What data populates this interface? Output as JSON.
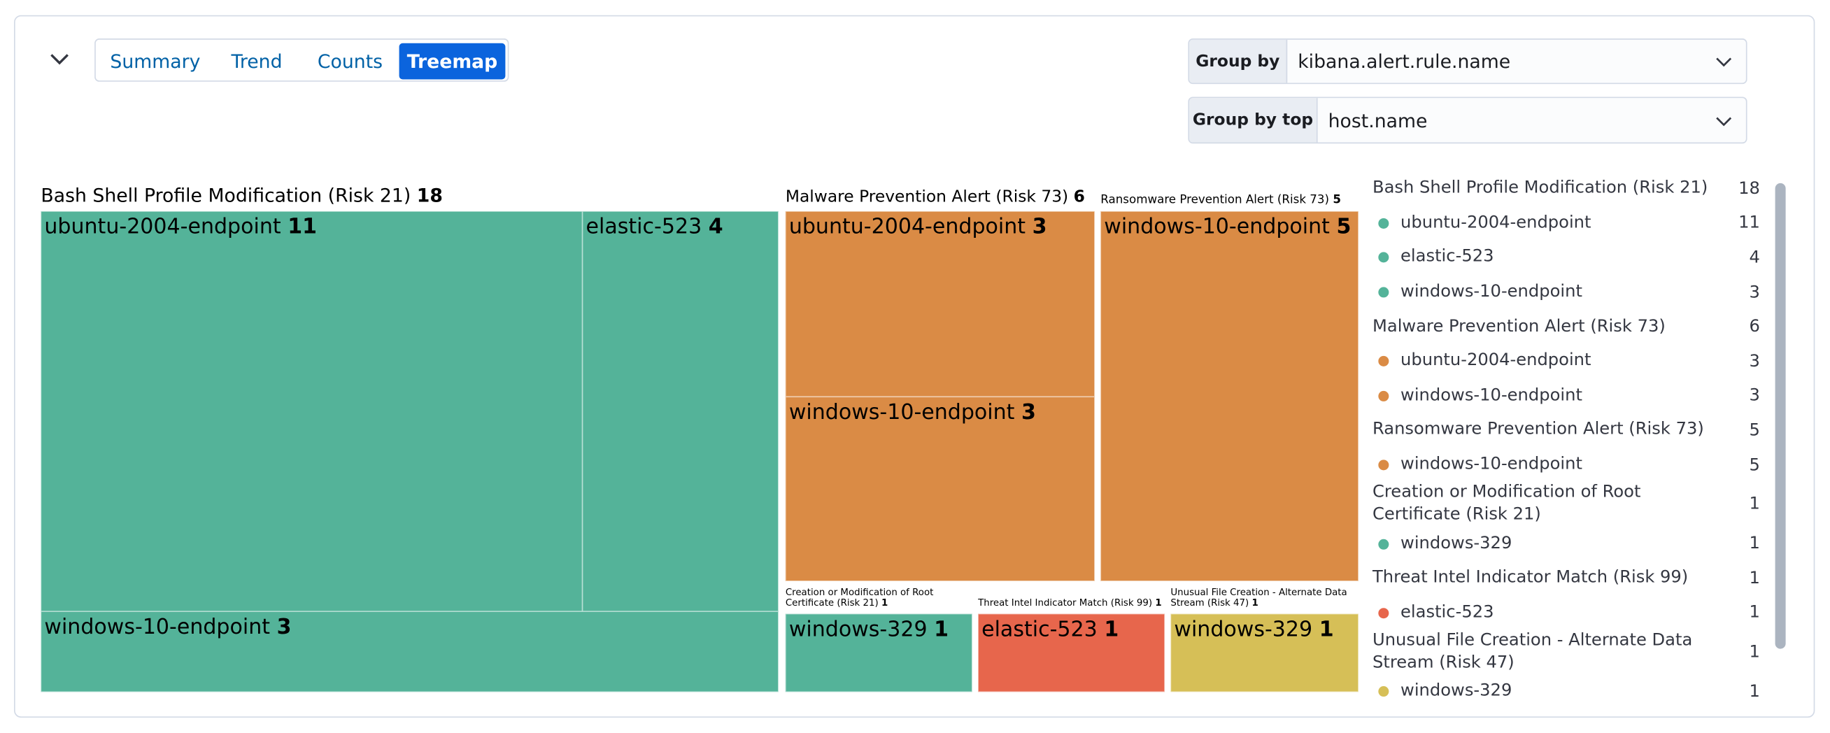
{
  "tabs": {
    "items": [
      "Summary",
      "Trend",
      "Counts",
      "Treemap"
    ],
    "active": 3
  },
  "group_by": {
    "label": "Group by",
    "value": "kibana.alert.rule.name"
  },
  "group_by_top": {
    "label": "Group by top",
    "value": "host.name"
  },
  "chart_data": {
    "type": "treemap",
    "groups": [
      {
        "name": "Bash Shell Profile Modification (Risk 21)",
        "value": 18,
        "color": "#54b399",
        "children": [
          {
            "name": "ubuntu-2004-endpoint",
            "value": 11
          },
          {
            "name": "elastic-523",
            "value": 4
          },
          {
            "name": "windows-10-endpoint",
            "value": 3
          }
        ]
      },
      {
        "name": "Malware Prevention Alert (Risk 73)",
        "value": 6,
        "color": "#da8b45",
        "children": [
          {
            "name": "ubuntu-2004-endpoint",
            "value": 3
          },
          {
            "name": "windows-10-endpoint",
            "value": 3
          }
        ]
      },
      {
        "name": "Ransomware Prevention Alert (Risk 73)",
        "value": 5,
        "color": "#da8b45",
        "children": [
          {
            "name": "windows-10-endpoint",
            "value": 5
          }
        ]
      },
      {
        "name": "Creation or Modification of Root Certificate (Risk 21)",
        "value": 1,
        "color": "#54b399",
        "children": [
          {
            "name": "windows-329",
            "value": 1
          }
        ]
      },
      {
        "name": "Threat Intel Indicator Match (Risk 99)",
        "value": 1,
        "color": "#e7664c",
        "children": [
          {
            "name": "elastic-523",
            "value": 1
          }
        ]
      },
      {
        "name": "Unusual File Creation - Alternate Data Stream (Risk 47)",
        "value": 1,
        "color": "#d6bf57",
        "children": [
          {
            "name": "windows-329",
            "value": 1
          }
        ]
      }
    ]
  }
}
